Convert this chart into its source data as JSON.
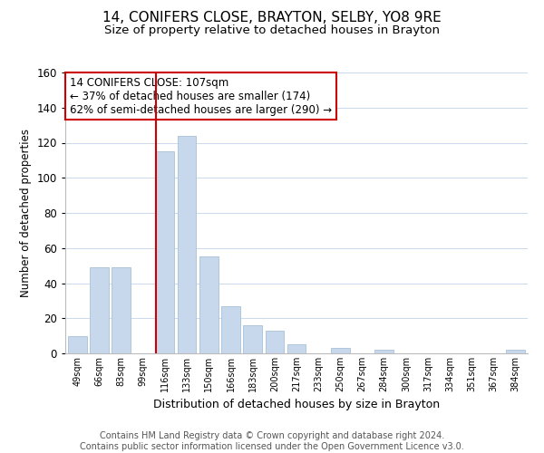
{
  "title": "14, CONIFERS CLOSE, BRAYTON, SELBY, YO8 9RE",
  "subtitle": "Size of property relative to detached houses in Brayton",
  "xlabel": "Distribution of detached houses by size in Brayton",
  "ylabel": "Number of detached properties",
  "bar_labels": [
    "49sqm",
    "66sqm",
    "83sqm",
    "99sqm",
    "116sqm",
    "133sqm",
    "150sqm",
    "166sqm",
    "183sqm",
    "200sqm",
    "217sqm",
    "233sqm",
    "250sqm",
    "267sqm",
    "284sqm",
    "300sqm",
    "317sqm",
    "334sqm",
    "351sqm",
    "367sqm",
    "384sqm"
  ],
  "bar_values": [
    10,
    49,
    49,
    0,
    115,
    124,
    55,
    27,
    16,
    13,
    5,
    0,
    3,
    0,
    2,
    0,
    0,
    0,
    0,
    0,
    2
  ],
  "bar_color": "#c8d8ec",
  "bar_edge_color": "#a8c0d8",
  "property_line_index": 4,
  "property_line_color": "#cc0000",
  "annotation_text": "14 CONIFERS CLOSE: 107sqm\n← 37% of detached houses are smaller (174)\n62% of semi-detached houses are larger (290) →",
  "ylim": [
    0,
    160
  ],
  "yticks": [
    0,
    20,
    40,
    60,
    80,
    100,
    120,
    140,
    160
  ],
  "footer_text": "Contains HM Land Registry data © Crown copyright and database right 2024.\nContains public sector information licensed under the Open Government Licence v3.0.",
  "background_color": "#ffffff",
  "grid_color": "#ccd8ec",
  "title_fontsize": 11,
  "subtitle_fontsize": 9.5,
  "footer_fontsize": 7
}
